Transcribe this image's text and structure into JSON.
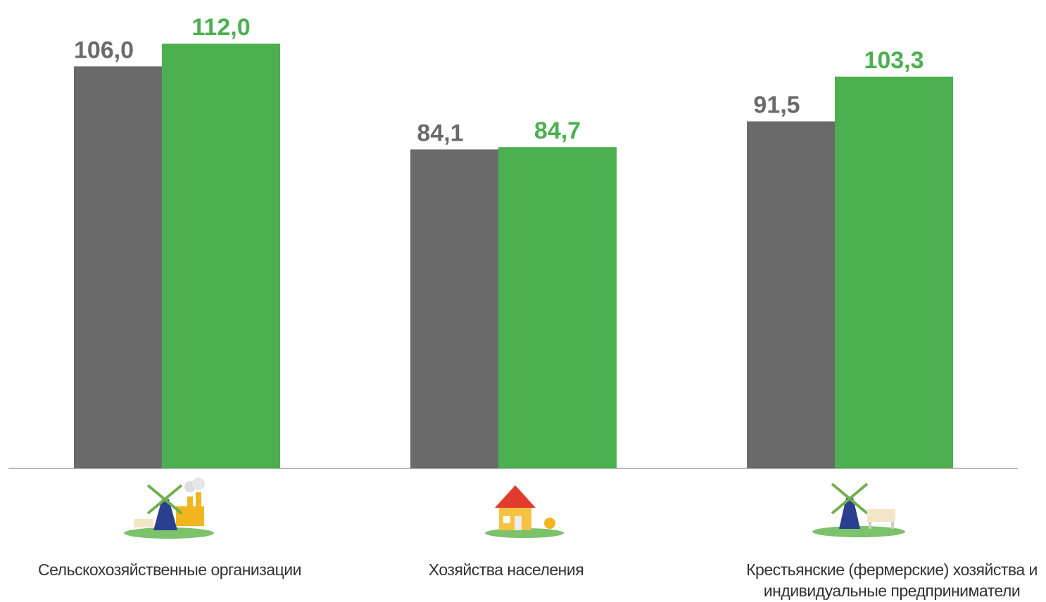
{
  "chart_data": {
    "type": "bar",
    "categories": [
      "Сельскохозяйственные организации",
      "Хозяйства населения",
      "Крестьянские (фермерские) хозяйства и индивидуальные предприниматели"
    ],
    "series": [
      {
        "color": "#6a6a6a",
        "values": [
          106.0,
          84.1,
          91.5
        ],
        "value_labels": [
          "106,0",
          "84,1",
          "91,5"
        ]
      },
      {
        "color": "#4caf50",
        "values": [
          112.0,
          84.7,
          103.3
        ],
        "value_labels": [
          "112,0",
          "84,7",
          "103,3"
        ]
      }
    ],
    "ylim": [
      0,
      123.5
    ]
  }
}
